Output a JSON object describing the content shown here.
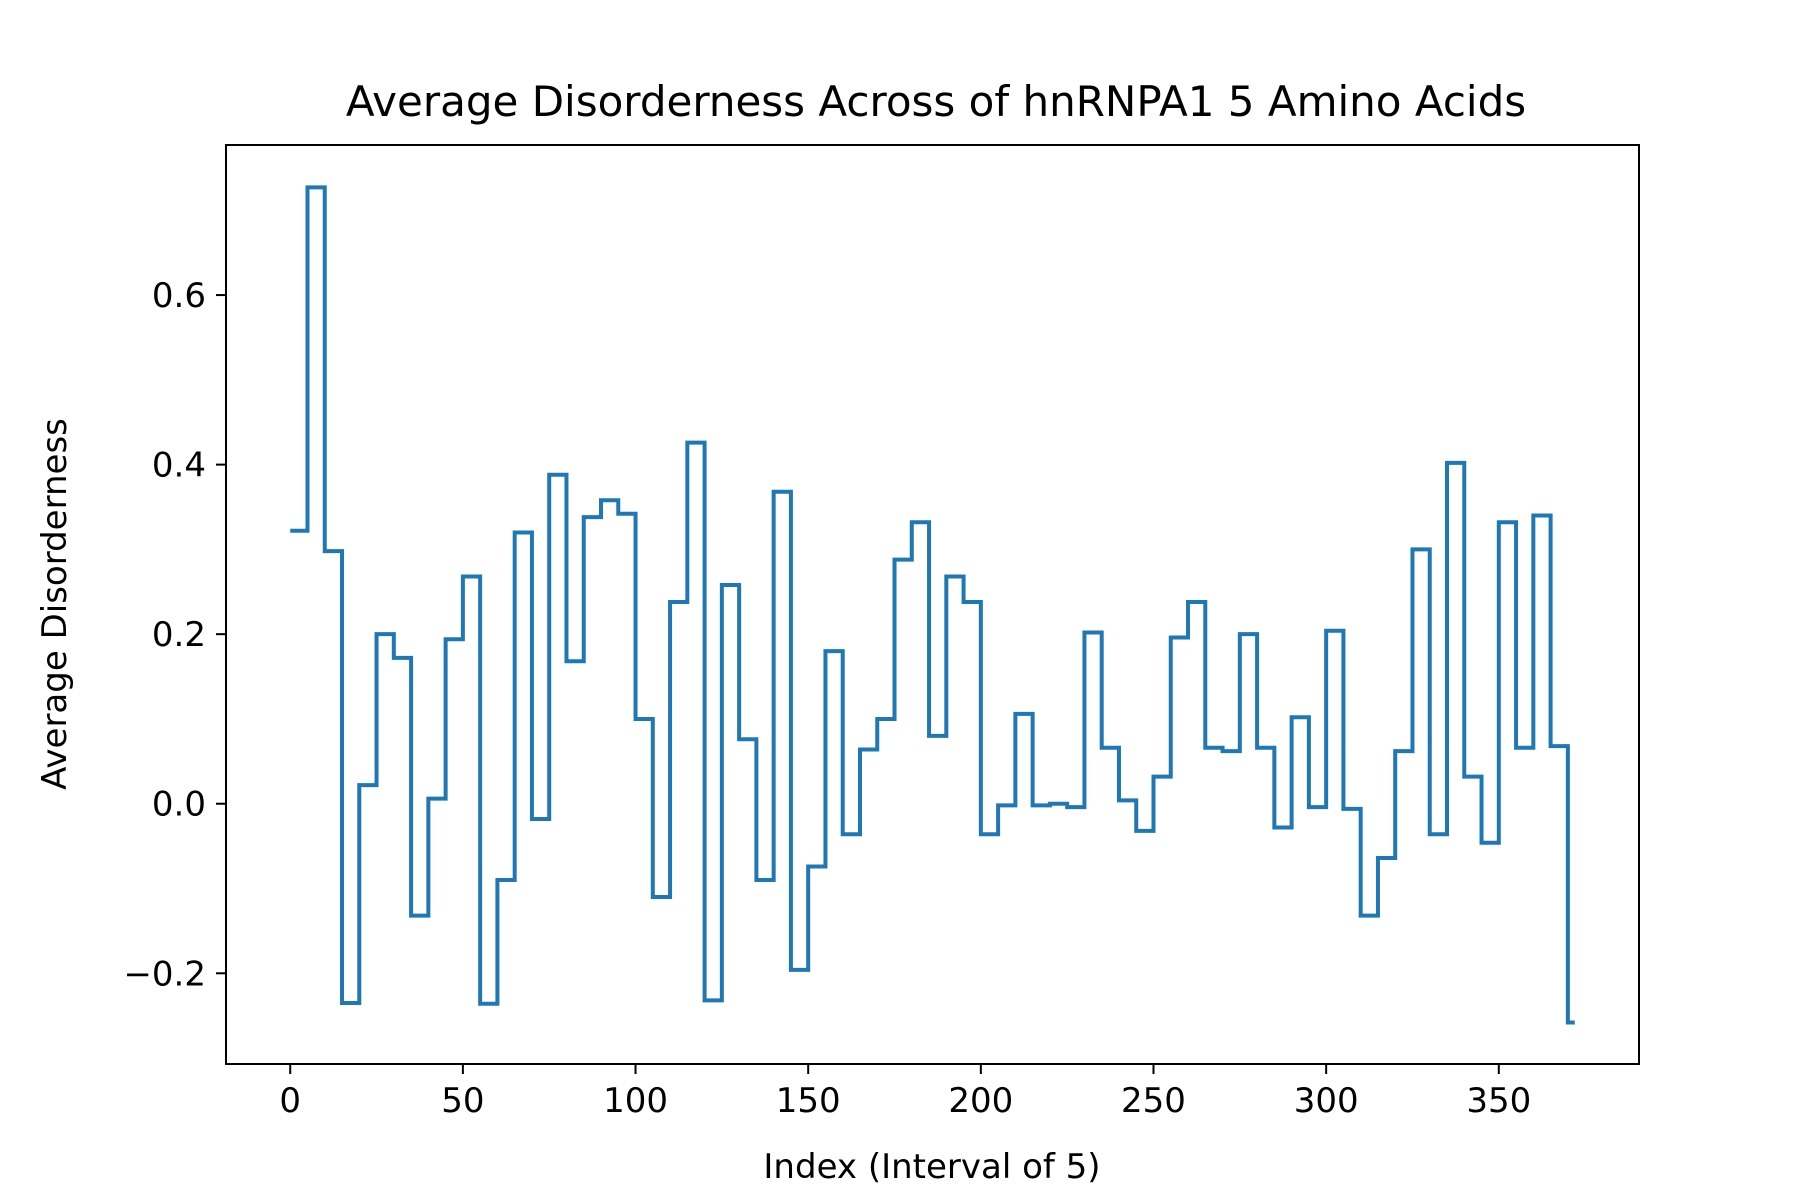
{
  "chart_data": {
    "type": "line",
    "step": "post",
    "title": "Average Disorderness Across of hnRNPA1 5 Amino Acids",
    "xlabel": "Index (Interval of 5)",
    "ylabel": "Average Disorderness",
    "xlim": [
      -18.6,
      390.6
    ],
    "ylim": [
      -0.307,
      0.777
    ],
    "xticks": [
      0,
      50,
      100,
      150,
      200,
      250,
      300,
      350
    ],
    "xtick_labels": [
      "0",
      "50",
      "100",
      "150",
      "200",
      "250",
      "300",
      "350"
    ],
    "yticks": [
      -0.2,
      0.0,
      0.2,
      0.4,
      0.6
    ],
    "ytick_labels": [
      "−0.2",
      "0.0",
      "0.2",
      "0.4",
      "0.6"
    ],
    "grid": false,
    "series": [
      {
        "color": "#1f77b4",
        "x": [
          0,
          5,
          10,
          15,
          20,
          25,
          30,
          35,
          40,
          45,
          50,
          55,
          60,
          65,
          70,
          75,
          80,
          85,
          90,
          95,
          100,
          105,
          110,
          115,
          120,
          125,
          130,
          135,
          140,
          145,
          150,
          155,
          160,
          165,
          170,
          175,
          180,
          185,
          190,
          195,
          200,
          205,
          210,
          215,
          220,
          225,
          230,
          235,
          240,
          245,
          250,
          255,
          260,
          265,
          270,
          275,
          280,
          285,
          290,
          295,
          300,
          305,
          310,
          315,
          320,
          325,
          330,
          335,
          340,
          345,
          350,
          355,
          360,
          365,
          370,
          372
        ],
        "y": [
          0.322,
          0.727,
          0.298,
          -0.235,
          0.022,
          0.2,
          0.172,
          -0.132,
          0.006,
          0.194,
          0.268,
          -0.236,
          -0.09,
          0.32,
          -0.018,
          0.388,
          0.168,
          0.338,
          0.358,
          0.342,
          0.1,
          -0.11,
          0.238,
          0.426,
          -0.232,
          0.258,
          0.076,
          -0.09,
          0.368,
          -0.196,
          -0.074,
          0.18,
          -0.036,
          0.064,
          0.1,
          0.288,
          0.332,
          0.08,
          0.268,
          0.238,
          -0.036,
          -0.002,
          0.106,
          -0.002,
          0.0,
          -0.004,
          0.202,
          0.066,
          0.004,
          -0.032,
          0.032,
          0.196,
          0.238,
          0.066,
          0.062,
          0.2,
          0.066,
          -0.028,
          0.102,
          -0.004,
          0.204,
          -0.006,
          -0.132,
          -0.064,
          0.062,
          0.3,
          -0.036,
          0.402,
          0.032,
          -0.046,
          0.332,
          0.066,
          0.34,
          0.068,
          -0.258,
          -0.258
        ]
      }
    ]
  }
}
